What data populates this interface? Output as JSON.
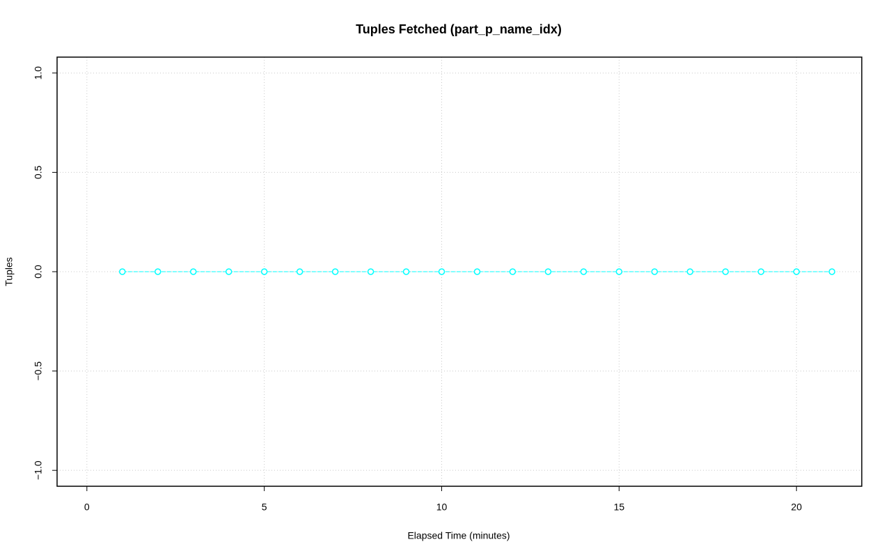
{
  "chart_data": {
    "type": "line",
    "title": "Tuples Fetched (part_p_name_idx)",
    "x_label": "Elapsed Time (minutes)",
    "y_label": "Tuples",
    "x": [
      1,
      2,
      3,
      4,
      5,
      6,
      7,
      8,
      9,
      10,
      11,
      12,
      13,
      14,
      15,
      16,
      17,
      18,
      19,
      20,
      21
    ],
    "series": [
      {
        "name": "part_p_name_idx",
        "color": "#00ffff",
        "values": [
          0,
          0,
          0,
          0,
          0,
          0,
          0,
          0,
          0,
          0,
          0,
          0,
          0,
          0,
          0,
          0,
          0,
          0,
          0,
          0,
          0
        ]
      }
    ],
    "xlim": [
      -0.84,
      21.84
    ],
    "ylim": [
      -1.08,
      1.08
    ],
    "xticks": [
      0,
      5,
      10,
      15,
      20
    ],
    "yticks": [
      {
        "value": -1,
        "label": "−1.0"
      },
      {
        "value": -0.5,
        "label": "−0.5"
      },
      {
        "value": 0,
        "label": "0.0"
      },
      0.5,
      {
        "value": 1,
        "label": "1.0"
      }
    ],
    "grid": true
  }
}
